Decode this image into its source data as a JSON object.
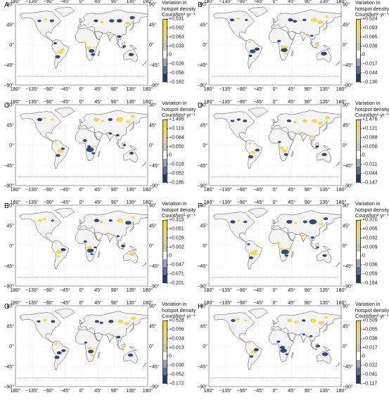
{
  "legend": {
    "title_line1": "Variation in",
    "title_line2": "hotspot density",
    "title_line3": "Count/km²·yr⁻¹"
  },
  "axes": {
    "lon_ticks": [
      "180°",
      "−135°",
      "−90°",
      "−45°",
      "0°",
      "45°",
      "90°",
      "135°",
      "180°"
    ],
    "lat_ticks": [
      "90°",
      "45°",
      "0°",
      "−45°",
      "−90°"
    ]
  },
  "colors": {
    "positive": "#f2d641",
    "negative": "#1f3a6b",
    "neutral": "#ffffff"
  },
  "panels": [
    {
      "label": "A",
      "scale": [
        "+0.531",
        "+0.092",
        "+0.063",
        "+0.033",
        "0",
        "−0.026",
        "−0.056",
        "−0.162"
      ]
    },
    {
      "label": "B",
      "scale": [
        "+0.524",
        "+0.093",
        "+0.065",
        "+0.038",
        "0",
        "−0.017",
        "−0.044",
        "−0.130"
      ]
    },
    {
      "label": "C",
      "scale": [
        "+1.495",
        "+0.119",
        "+0.084",
        "+0.050",
        "0",
        "−0.018",
        "−0.052",
        "−0.185"
      ]
    },
    {
      "label": "D",
      "scale": [
        "+1.476",
        "+0.121",
        "+0.088",
        "+0.050",
        "0",
        "−0.011",
        "−0.044",
        "−0.147"
      ]
    },
    {
      "label": "E",
      "scale": [
        "+0.315",
        "+0.051",
        "+0.026",
        "+0.002",
        "0",
        "−0.047",
        "−0.071",
        "−0.201"
      ]
    },
    {
      "label": "F",
      "scale": [
        "+0.370",
        "+0.055",
        "+0.032",
        "+0.009",
        "0",
        "−0.036",
        "−0.059",
        "−0.184"
      ]
    },
    {
      "label": "G",
      "scale": [
        "+0.528",
        "+0.056",
        "+0.034",
        "+0.013",
        "0",
        "−0.030",
        "−0.052",
        "−0.172"
      ]
    },
    {
      "label": "H",
      "scale": [
        "+0.509",
        "+0.055",
        "+0.036",
        "+0.017",
        "0",
        "−0.022",
        "−0.041",
        "−0.117"
      ]
    }
  ]
}
